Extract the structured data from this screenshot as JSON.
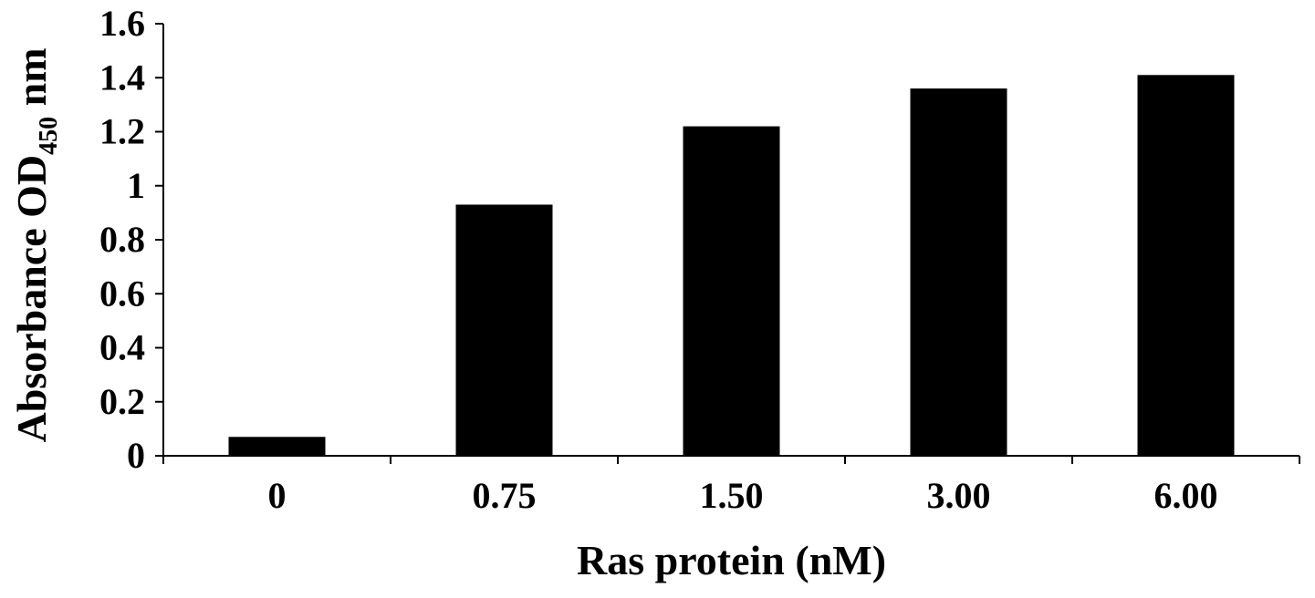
{
  "chart_data": {
    "type": "bar",
    "title": "",
    "xlabel": "Ras protein (nM)",
    "ylabel": {
      "prefix": "Absorbance OD",
      "subscript": "450",
      "suffix": " nm"
    },
    "categories": [
      "0",
      "0.75",
      "1.50",
      "3.00",
      "6.00"
    ],
    "values": [
      0.07,
      0.93,
      1.22,
      1.36,
      1.41
    ],
    "ylim": [
      0,
      1.6
    ],
    "yticks": [
      0,
      0.2,
      0.4,
      0.6,
      0.8,
      1,
      1.2,
      1.4,
      1.6
    ],
    "ytick_labels": [
      "0",
      "0.2",
      "0.4",
      "0.6",
      "0.8",
      "1",
      "1.2",
      "1.4",
      "1.6"
    ],
    "grid": false,
    "legend": "none",
    "colors": {
      "bar": "#000000",
      "axis": "#000000",
      "background": "#ffffff"
    }
  }
}
